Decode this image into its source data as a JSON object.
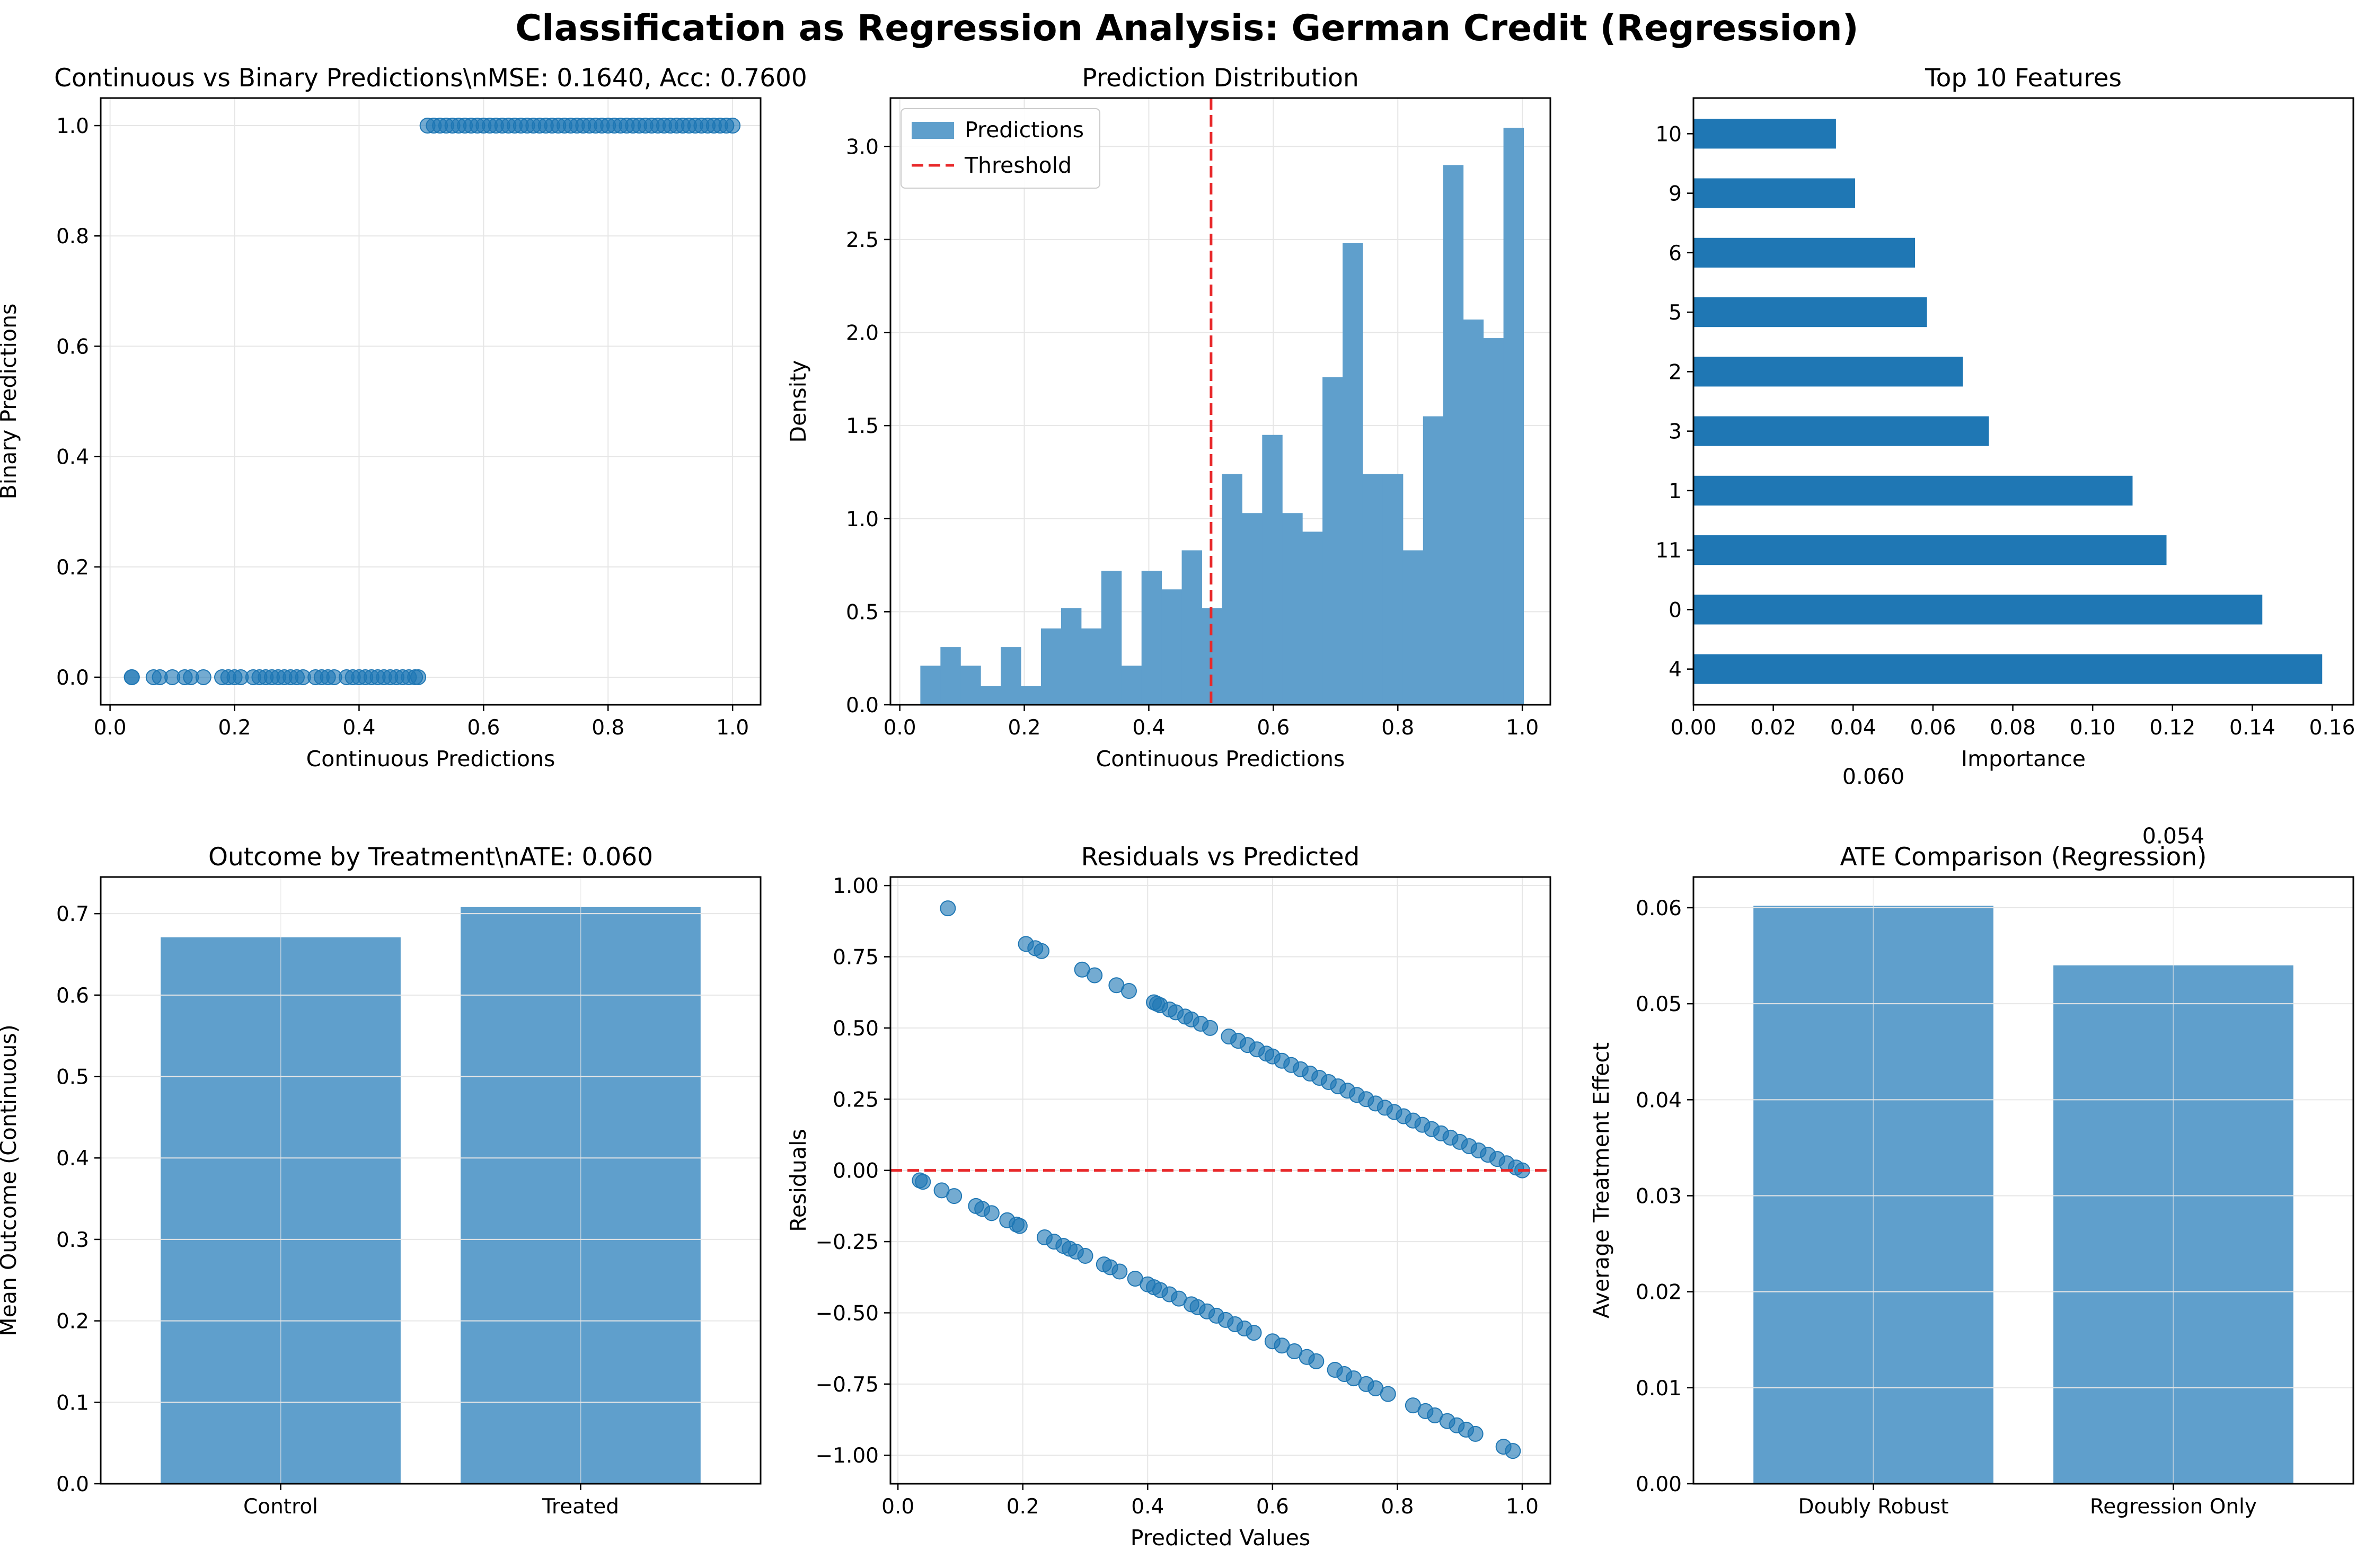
{
  "figure_title": "Classification as Regression Analysis: German Credit (Regression)",
  "colors": {
    "bar": "#5f9fcc",
    "bar_dark": "#1f77b4",
    "point": "#1f77b4",
    "reference": "#e8282a",
    "grid": "#e6e6e6"
  },
  "chart_data": [
    {
      "id": "continuous-vs-binary",
      "type": "scatter",
      "title": "Continuous vs Binary Predictions\\nMSE: 0.1640, Acc: 0.7600",
      "xlabel": "Continuous Predictions",
      "ylabel": "Binary Predictions",
      "xlim": [
        -0.015,
        1.045
      ],
      "ylim": [
        -0.05,
        1.05
      ],
      "xticks": [
        0.0,
        0.2,
        0.4,
        0.6,
        0.8,
        1.0
      ],
      "yticks": [
        0.0,
        0.2,
        0.4,
        0.6,
        0.8,
        1.0
      ],
      "tick_labels_x": [
        "0.0",
        "0.2",
        "0.4",
        "0.6",
        "0.8",
        "1.0"
      ],
      "tick_labels_y": [
        "0.0",
        "0.2",
        "0.4",
        "0.6",
        "0.8",
        "1.0"
      ],
      "grid": true,
      "series": [
        {
          "y": 0,
          "x": [
            0.035,
            0.035,
            0.07,
            0.08,
            0.1,
            0.12,
            0.13,
            0.15,
            0.18,
            0.19,
            0.2,
            0.21,
            0.23,
            0.24,
            0.25,
            0.26,
            0.27,
            0.28,
            0.29,
            0.3,
            0.31,
            0.33,
            0.34,
            0.35,
            0.36,
            0.38,
            0.39,
            0.4,
            0.41,
            0.42,
            0.43,
            0.44,
            0.45,
            0.46,
            0.47,
            0.48,
            0.49,
            0.495
          ]
        },
        {
          "y": 1,
          "x": [
            0.51,
            0.52,
            0.53,
            0.54,
            0.55,
            0.56,
            0.57,
            0.58,
            0.59,
            0.6,
            0.61,
            0.62,
            0.63,
            0.64,
            0.65,
            0.66,
            0.67,
            0.68,
            0.69,
            0.7,
            0.71,
            0.72,
            0.73,
            0.74,
            0.75,
            0.76,
            0.77,
            0.78,
            0.79,
            0.8,
            0.81,
            0.82,
            0.83,
            0.84,
            0.85,
            0.86,
            0.87,
            0.88,
            0.89,
            0.9,
            0.91,
            0.92,
            0.93,
            0.94,
            0.95,
            0.96,
            0.97,
            0.98,
            0.99,
            1.0
          ]
        }
      ]
    },
    {
      "id": "prediction-distribution",
      "type": "histogram",
      "title": "Prediction Distribution",
      "xlabel": "Continuous Predictions",
      "ylabel": "Density",
      "xlim": [
        -0.015,
        1.045
      ],
      "ylim": [
        0,
        3.26
      ],
      "xticks": [
        0.0,
        0.2,
        0.4,
        0.6,
        0.8,
        1.0
      ],
      "yticks": [
        0.0,
        0.5,
        1.0,
        1.5,
        2.0,
        2.5,
        3.0
      ],
      "tick_labels_x": [
        "0.0",
        "0.2",
        "0.4",
        "0.6",
        "0.8",
        "1.0"
      ],
      "tick_labels_y": [
        "0.0",
        "0.5",
        "1.0",
        "1.5",
        "2.0",
        "2.5",
        "3.0"
      ],
      "grid": true,
      "bin_start": 0.033,
      "bin_width": 0.0323,
      "densities": [
        0.21,
        0.31,
        0.21,
        0.1,
        0.31,
        0.1,
        0.41,
        0.52,
        0.41,
        0.72,
        0.21,
        0.72,
        0.62,
        0.83,
        0.52,
        1.24,
        1.03,
        1.45,
        1.03,
        0.93,
        1.76,
        2.48,
        1.24,
        1.24,
        0.83,
        1.55,
        2.9,
        2.07,
        1.97,
        3.1
      ],
      "threshold": 0.5,
      "legend": [
        "Predictions",
        "Threshold"
      ],
      "legend_position": "upper-left"
    },
    {
      "id": "top-features",
      "type": "barh",
      "title": "Top 10 Features",
      "xlabel": "Importance",
      "xlim": [
        0,
        0.1653
      ],
      "xticks": [
        0.0,
        0.02,
        0.04,
        0.06,
        0.08,
        0.1,
        0.12,
        0.14,
        0.16
      ],
      "tick_labels_x": [
        "0.00",
        "0.02",
        "0.04",
        "0.06",
        "0.08",
        "0.10",
        "0.12",
        "0.14",
        "0.16"
      ],
      "categories": [
        "4",
        "0",
        "11",
        "1",
        "3",
        "2",
        "5",
        "6",
        "9",
        "10"
      ],
      "values": [
        0.1575,
        0.1425,
        0.1185,
        0.11,
        0.074,
        0.0675,
        0.0585,
        0.0555,
        0.0405,
        0.0357
      ]
    },
    {
      "id": "outcome-by-treatment",
      "type": "bar",
      "title": "Outcome by Treatment\\nATE: 0.060",
      "ylabel": "Mean Outcome (Continuous)",
      "ylim": [
        0,
        0.745
      ],
      "yticks": [
        0.0,
        0.1,
        0.2,
        0.3,
        0.4,
        0.5,
        0.6,
        0.7
      ],
      "tick_labels_y": [
        "0.0",
        "0.1",
        "0.2",
        "0.3",
        "0.4",
        "0.5",
        "0.6",
        "0.7"
      ],
      "grid": true,
      "categories": [
        "Control",
        "Treated"
      ],
      "values": [
        0.671,
        0.708
      ]
    },
    {
      "id": "residuals-vs-predicted",
      "type": "scatter",
      "title": "Residuals vs Predicted",
      "xlabel": "Predicted Values",
      "ylabel": "Residuals",
      "xlim": [
        -0.012,
        1.045
      ],
      "ylim": [
        -1.1,
        1.03
      ],
      "xticks": [
        0.0,
        0.2,
        0.4,
        0.6,
        0.8,
        1.0
      ],
      "yticks": [
        -1.0,
        -0.75,
        -0.5,
        -0.25,
        0.0,
        0.25,
        0.5,
        0.75,
        1.0
      ],
      "tick_labels_x": [
        "0.0",
        "0.2",
        "0.4",
        "0.6",
        "0.8",
        "1.0"
      ],
      "tick_labels_y": [
        "−1.00",
        "−0.75",
        "−0.50",
        "−0.25",
        "0.00",
        "0.25",
        "0.50",
        "0.75",
        "1.00"
      ],
      "grid": true,
      "reference_y": 0,
      "positive_x": [
        0.08,
        0.205,
        0.22,
        0.23,
        0.295,
        0.315,
        0.35,
        0.37,
        0.41,
        0.415,
        0.42,
        0.435,
        0.445,
        0.46,
        0.47,
        0.485,
        0.5,
        0.53,
        0.545,
        0.56,
        0.575,
        0.59,
        0.6,
        0.615,
        0.63,
        0.645,
        0.66,
        0.675,
        0.69,
        0.705,
        0.72,
        0.735,
        0.75,
        0.765,
        0.78,
        0.795,
        0.81,
        0.825,
        0.84,
        0.855,
        0.87,
        0.885,
        0.9,
        0.915,
        0.93,
        0.945,
        0.96,
        0.975,
        0.99,
        1.0
      ],
      "negative_x": [
        0.035,
        0.04,
        0.07,
        0.09,
        0.125,
        0.135,
        0.15,
        0.175,
        0.19,
        0.195,
        0.235,
        0.25,
        0.265,
        0.275,
        0.285,
        0.3,
        0.33,
        0.34,
        0.355,
        0.38,
        0.4,
        0.41,
        0.42,
        0.435,
        0.45,
        0.47,
        0.48,
        0.495,
        0.51,
        0.525,
        0.54,
        0.555,
        0.57,
        0.6,
        0.615,
        0.635,
        0.655,
        0.67,
        0.7,
        0.715,
        0.73,
        0.75,
        0.765,
        0.785,
        0.825,
        0.845,
        0.86,
        0.88,
        0.895,
        0.91,
        0.925,
        0.97,
        0.985
      ]
    },
    {
      "id": "ate-comparison",
      "type": "bar",
      "title": "ATE Comparison (Regression)",
      "ylabel": "Average Treatment Effect",
      "ylim": [
        0,
        0.0632
      ],
      "yticks": [
        0.0,
        0.01,
        0.02,
        0.03,
        0.04,
        0.05,
        0.06
      ],
      "tick_labels_y": [
        "0.00",
        "0.01",
        "0.02",
        "0.03",
        "0.04",
        "0.05",
        "0.06"
      ],
      "grid": true,
      "categories": [
        "Doubly Robust",
        "Regression Only"
      ],
      "values": [
        0.0602,
        0.054
      ],
      "data_labels": [
        "0.060",
        "0.054"
      ]
    }
  ]
}
